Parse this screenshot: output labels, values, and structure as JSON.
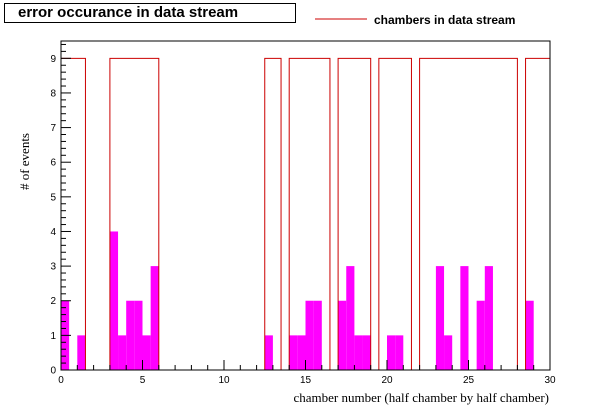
{
  "chart_data": {
    "type": "bar",
    "title": "error occurance in data stream",
    "xlabel": "chamber number (half chamber by half chamber)",
    "ylabel": "# of events",
    "xlim": [
      0,
      30
    ],
    "ylim": [
      0,
      9.5
    ],
    "x_ticks": [
      0,
      5,
      10,
      15,
      20,
      25,
      30
    ],
    "y_ticks": [
      0,
      1,
      2,
      3,
      4,
      5,
      6,
      7,
      8,
      9
    ],
    "bin_width": 0.5,
    "legend": {
      "position": "top-right",
      "entries": [
        "chambers in data stream"
      ]
    },
    "series": [
      {
        "name": "chambers in data stream",
        "style": "step",
        "color": "#cc0000",
        "x": [
          0,
          0.5,
          1,
          1.5,
          2,
          2.5,
          3,
          3.5,
          4,
          4.5,
          5,
          5.5,
          6,
          6.5,
          7,
          7.5,
          8,
          8.5,
          9,
          9.5,
          10,
          10.5,
          11,
          11.5,
          12,
          12.5,
          13,
          13.5,
          14,
          14.5,
          15,
          15.5,
          16,
          16.5,
          17,
          17.5,
          18,
          18.5,
          19,
          19.5,
          20,
          20.5,
          21,
          21.5,
          22,
          22.5,
          23,
          23.5,
          24,
          24.5,
          25,
          25.5,
          26,
          26.5,
          27,
          27.5,
          28,
          28.5,
          29,
          29.5
        ],
        "values": [
          9,
          9,
          9,
          0,
          0,
          0,
          9,
          9,
          9,
          9,
          9,
          9,
          0,
          0,
          0,
          0,
          0,
          0,
          0,
          0,
          0,
          0,
          0,
          0,
          0,
          9,
          9,
          0,
          9,
          9,
          9,
          9,
          9,
          0,
          9,
          9,
          9,
          9,
          0,
          9,
          9,
          9,
          9,
          0,
          9,
          9,
          9,
          9,
          9,
          9,
          9,
          9,
          9,
          9,
          9,
          9,
          0,
          9,
          9,
          9
        ]
      },
      {
        "name": "",
        "style": "filled-bar",
        "color": "#ff00ff",
        "x": [
          0,
          0.5,
          1,
          1.5,
          2,
          2.5,
          3,
          3.5,
          4,
          4.5,
          5,
          5.5,
          6,
          6.5,
          7,
          7.5,
          8,
          8.5,
          9,
          9.5,
          10,
          10.5,
          11,
          11.5,
          12,
          12.5,
          13,
          13.5,
          14,
          14.5,
          15,
          15.5,
          16,
          16.5,
          17,
          17.5,
          18,
          18.5,
          19,
          19.5,
          20,
          20.5,
          21,
          21.5,
          22,
          22.5,
          23,
          23.5,
          24,
          24.5,
          25,
          25.5,
          26,
          26.5,
          27,
          27.5,
          28,
          28.5,
          29,
          29.5
        ],
        "values": [
          2,
          0,
          1,
          0,
          0,
          0,
          4,
          1,
          2,
          2,
          1,
          3,
          0,
          0,
          0,
          0,
          0,
          0,
          0,
          0,
          0,
          0,
          0,
          0,
          0,
          1,
          0,
          0,
          1,
          1,
          2,
          2,
          0,
          0,
          2,
          3,
          1,
          1,
          0,
          0,
          1,
          1,
          0,
          0,
          0,
          0,
          3,
          1,
          0,
          3,
          0,
          2,
          3,
          0,
          0,
          0,
          0,
          2,
          0,
          0
        ]
      }
    ]
  },
  "colors": {
    "outline": "#cc0000",
    "fill": "#ff00ff",
    "frame": "#000000"
  }
}
